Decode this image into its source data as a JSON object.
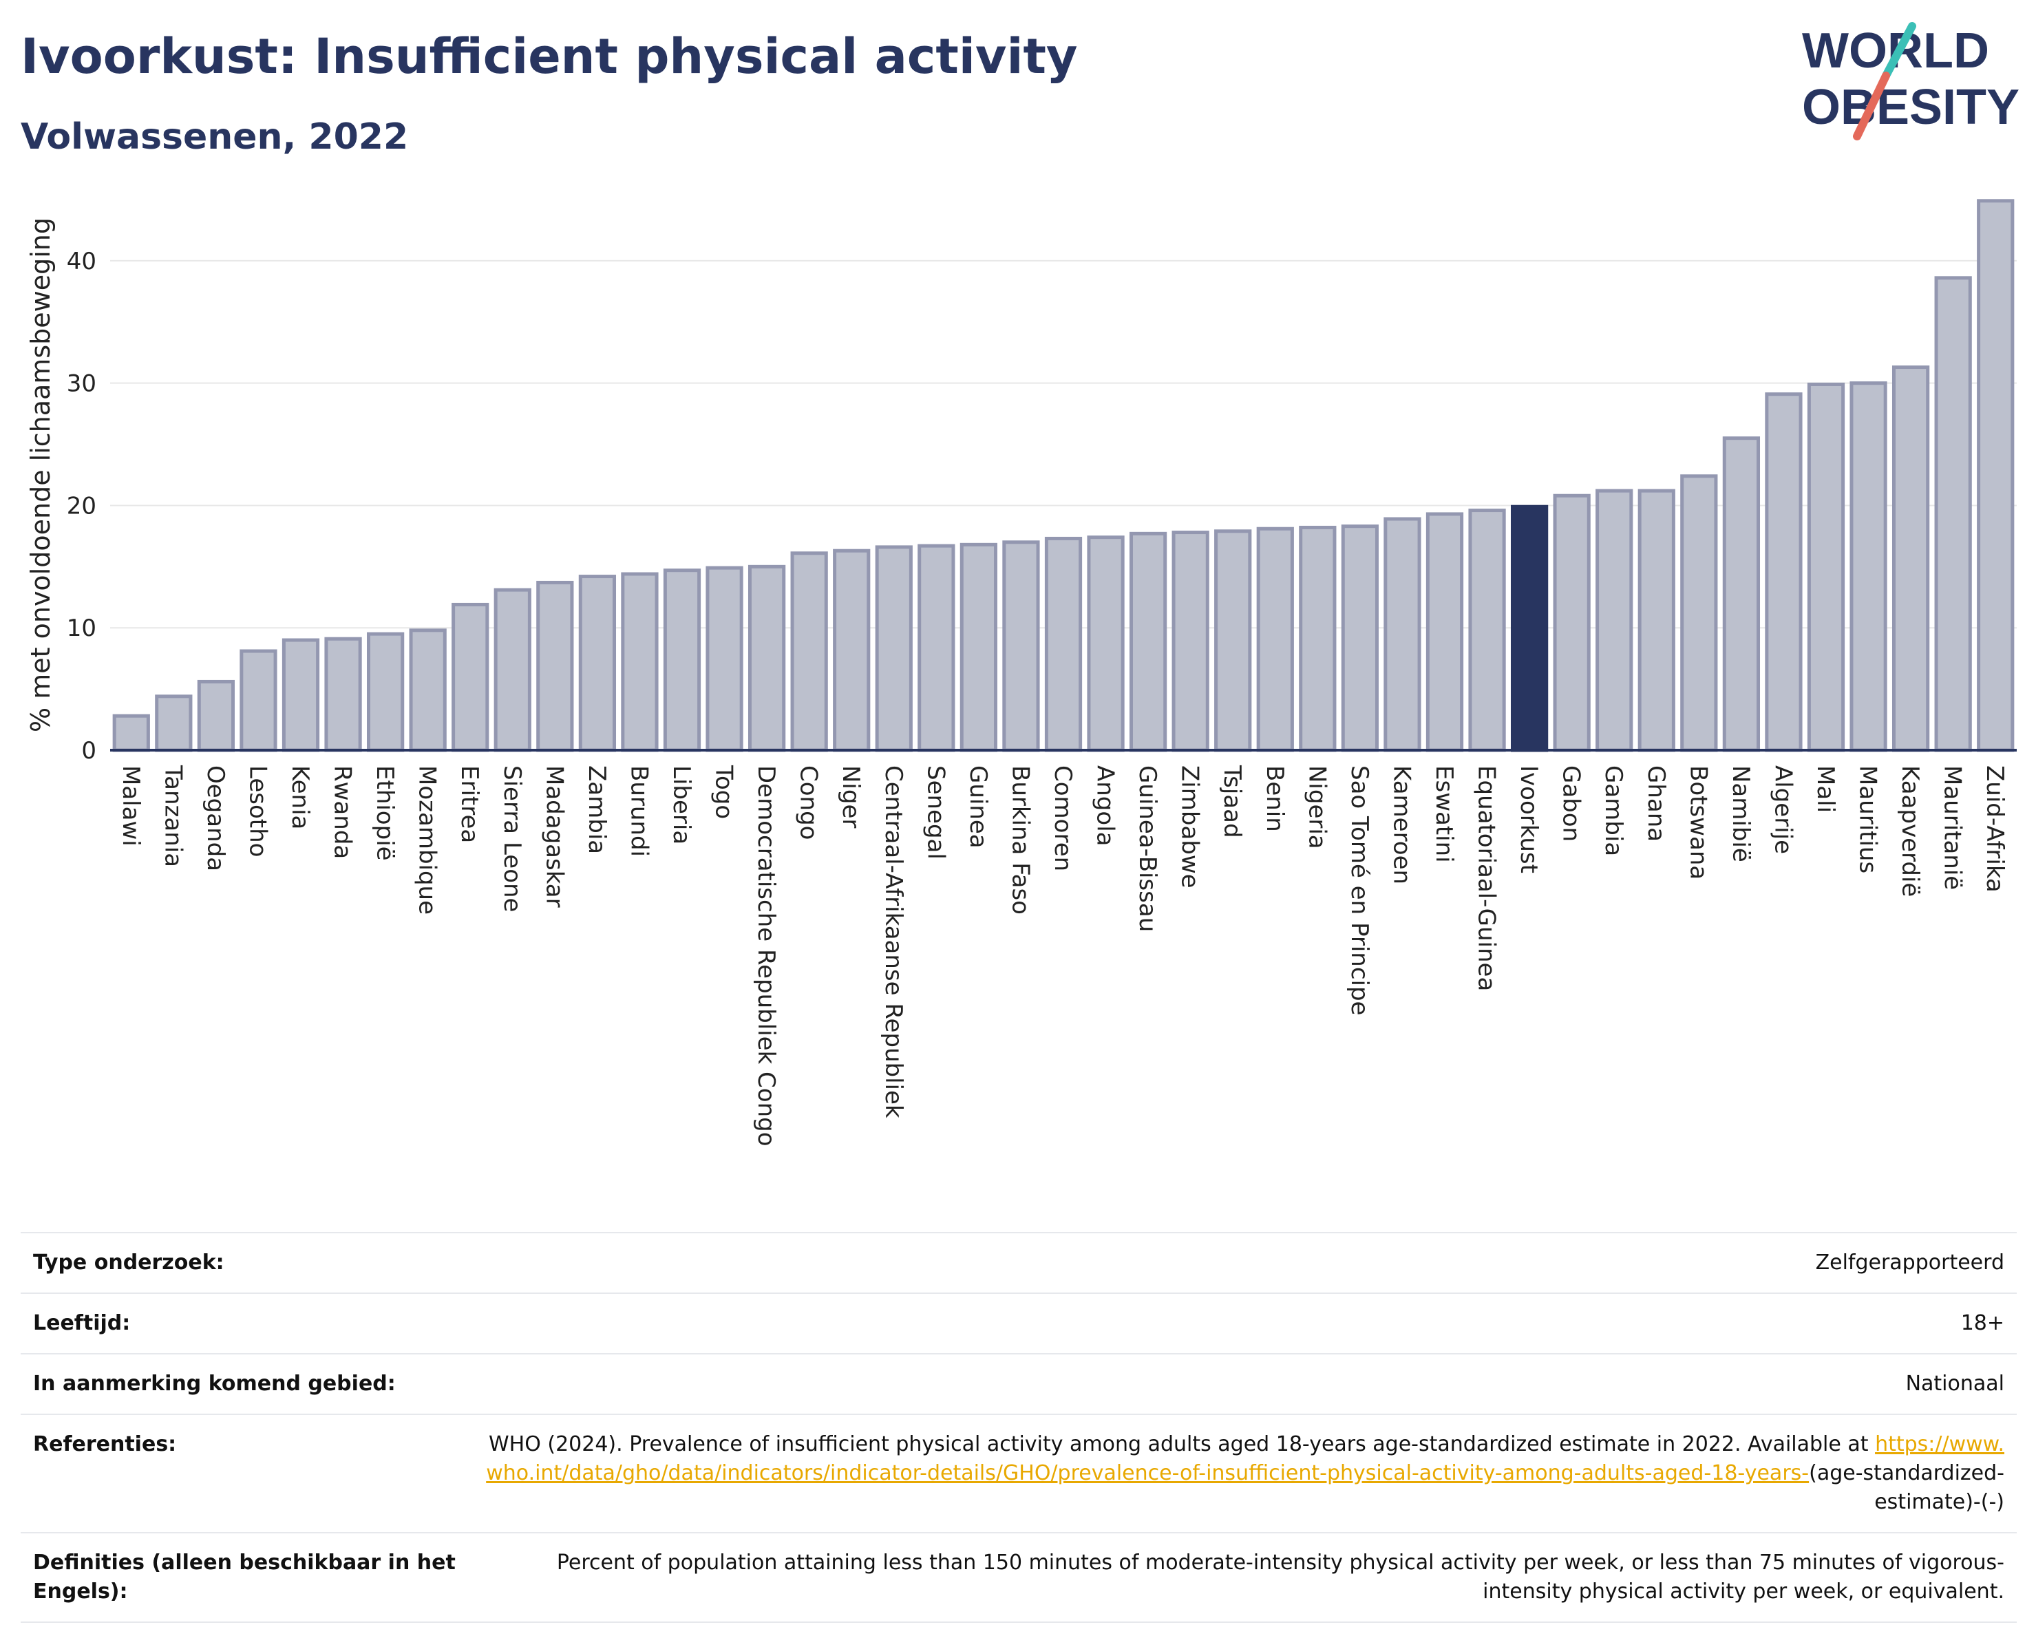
{
  "header": {
    "title": "Ivoorkust: Insufficient physical activity",
    "subtitle": "Volwassenen, 2022"
  },
  "logo": {
    "line1": "WORLD",
    "line2": "OBESITY",
    "colors": {
      "text": "#283560",
      "slash_red": "#e4695a",
      "slash_teal": "#3bbfb6"
    }
  },
  "colors": {
    "bar": "#bcc0cd",
    "bar_border": "#9397b0",
    "highlight": "#283560",
    "axis": "#283560",
    "grid": "#e8e8e8"
  },
  "chart_data": {
    "type": "bar",
    "ylabel": "% met onvoldoende lichaamsbeweging",
    "xlabel": "",
    "ylim": [
      0,
      45
    ],
    "yticks": [
      0,
      10,
      20,
      30,
      40
    ],
    "grid": true,
    "highlight": "Ivoorkust",
    "categories": [
      "Malawi",
      "Tanzania",
      "Oeganda",
      "Lesotho",
      "Kenia",
      "Rwanda",
      "Ethiopië",
      "Mozambique",
      "Eritrea",
      "Sierra Leone",
      "Madagaskar",
      "Zambia",
      "Burundi",
      "Liberia",
      "Togo",
      "Democratische Republiek Congo",
      "Congo",
      "Niger",
      "Centraal-Afrikaanse Republiek",
      "Senegal",
      "Guinea",
      "Burkina Faso",
      "Comoren",
      "Angola",
      "Guinea-Bissau",
      "Zimbabwe",
      "Tsjaad",
      "Benin",
      "Nigeria",
      "Sao Tomé en Principe",
      "Kameroen",
      "Eswatini",
      "Equatoriaal-Guinea",
      "Ivoorkust",
      "Gabon",
      "Gambia",
      "Ghana",
      "Botswana",
      "Namibië",
      "Algerije",
      "Mali",
      "Mauritius",
      "Kaapverdië",
      "Mauritanië",
      "Zuid-Afrika"
    ],
    "values": [
      2.8,
      4.4,
      5.6,
      8.1,
      9.0,
      9.1,
      9.5,
      9.8,
      11.9,
      13.1,
      13.7,
      14.2,
      14.4,
      14.7,
      14.9,
      15.0,
      16.1,
      16.3,
      16.6,
      16.7,
      16.8,
      17.0,
      17.3,
      17.4,
      17.7,
      17.8,
      17.9,
      18.1,
      18.2,
      18.3,
      18.9,
      19.3,
      19.6,
      19.9,
      20.8,
      21.2,
      21.2,
      22.4,
      25.5,
      29.1,
      29.9,
      30.0,
      31.3,
      38.6,
      44.9
    ]
  },
  "info_table": [
    {
      "key": "Type onderzoek:",
      "value": "Zelfgerapporteerd"
    },
    {
      "key": "Leeftijd:",
      "value": "18+"
    },
    {
      "key": "In aanmerking komend gebied:",
      "value": "Nationaal"
    },
    {
      "key": "Referenties:",
      "value_text": "WHO (2024). Prevalence of insufficient physical activity among adults aged 18-years age-standardized estimate in 2022. Available at ",
      "value_link": "https://www.who.int/data/gho/data/indicators/indicator-details/GHO/prevalence-of-insufficient-physical-activity-among-adults-aged-18-years-",
      "value_suffix": "(age-standardized-estimate)-(-)"
    },
    {
      "key": "Definities (alleen beschikbaar in het Engels):",
      "value": "Percent of population attaining less than 150 minutes of moderate-intensity physical activity per week, or less than 75 minutes of vigorous-intensity physical activity per week, or equivalent."
    }
  ]
}
